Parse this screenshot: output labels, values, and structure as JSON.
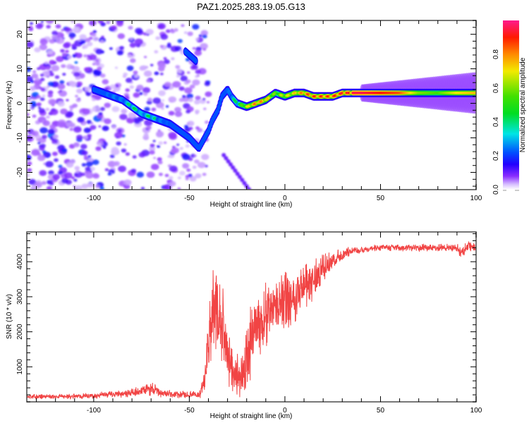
{
  "title": "PAZ1.2025.283.19.05.G13",
  "chart_data": [
    {
      "type": "heatmap",
      "name": "spectrogram",
      "title": "PAZ1.2025.283.19.05.G13",
      "xlabel": "Height of straight line (km)",
      "ylabel": "Frequency (Hz)",
      "xlim": [
        -135,
        100
      ],
      "ylim": [
        -25,
        24
      ],
      "xticks": [
        -100,
        -50,
        0,
        50,
        100
      ],
      "xtick_labels": [
        "-100",
        "-50",
        "0",
        "50",
        "100"
      ],
      "yticks": [
        -20,
        -10,
        0,
        10,
        20
      ],
      "ytick_labels": [
        "-20",
        "-10",
        "0",
        "10",
        "20"
      ],
      "colorbar": {
        "label": "Normalized spectral amplitude",
        "range": [
          0.0,
          1.0
        ],
        "ticks": [
          0.0,
          0.2,
          0.4,
          0.6,
          0.8
        ],
        "tick_labels": [
          "0.0",
          "0.2",
          "0.4",
          "0.6",
          "0.8"
        ],
        "colormap": [
          "#ffffff",
          "#e6d6ff",
          "#9a4dff",
          "#6a00ff",
          "#1a00ff",
          "#0060ff",
          "#00e5e5",
          "#00dd33",
          "#66e600",
          "#f0e800",
          "#ff9900",
          "#ff2000",
          "#ff1a8c"
        ]
      },
      "ridge_track": {
        "description": "Main tone track (frequency vs height), amplitude 0-1",
        "x": [
          -100,
          -95,
          -90,
          -85,
          -80,
          -75,
          -70,
          -65,
          -60,
          -55,
          -50,
          -45,
          -42,
          -40,
          -38,
          -35,
          -33,
          -30,
          -28,
          -25,
          -20,
          -15,
          -10,
          -5,
          0,
          5,
          10,
          15,
          20,
          25,
          30,
          40,
          50,
          60,
          70,
          80,
          90,
          100
        ],
        "freq": [
          4,
          3,
          2,
          1,
          -1,
          -3,
          -4,
          -5,
          -6,
          -8,
          -10,
          -13,
          -10,
          -8,
          -5,
          -2,
          2,
          4,
          2,
          0,
          -1,
          0,
          1,
          3,
          2,
          3,
          3,
          2,
          2,
          2,
          3,
          3,
          3,
          3,
          3,
          3,
          3,
          3
        ],
        "amp": [
          0.25,
          0.3,
          0.35,
          0.35,
          0.45,
          0.4,
          0.45,
          0.35,
          0.3,
          0.25,
          0.25,
          0.2,
          0.35,
          0.25,
          0.2,
          0.2,
          0.2,
          0.3,
          0.4,
          0.45,
          0.7,
          0.85,
          0.8,
          0.6,
          0.7,
          0.75,
          0.85,
          0.9,
          0.9,
          0.9,
          0.95,
          0.95,
          0.9,
          0.85,
          0.6,
          0.55,
          0.7,
          0.75
        ]
      },
      "secondary_track": {
        "x": [
          -52,
          -50,
          -48,
          -46
        ],
        "freq": [
          15,
          14,
          13,
          12
        ],
        "amp": [
          0.2,
          0.3,
          0.3,
          0.2
        ]
      },
      "noise_region": {
        "x_range": [
          -135,
          -40
        ],
        "level": 0.12
      }
    },
    {
      "type": "line",
      "name": "snr",
      "xlabel": "Height of straight line (km)",
      "ylabel": "SNR (10 * v/v)",
      "xlim": [
        -135,
        100
      ],
      "ylim": [
        0,
        4850
      ],
      "xticks": [
        -100,
        -50,
        0,
        50,
        100
      ],
      "xtick_labels": [
        "-100",
        "-50",
        "0",
        "50",
        "100"
      ],
      "yticks": [
        1000,
        2000,
        3000,
        4000
      ],
      "ytick_labels": [
        "1000",
        "2000",
        "3000",
        "4000"
      ],
      "color": "#f03030",
      "series": [
        {
          "name": "SNR",
          "envelope_x": [
            -135,
            -120,
            -100,
            -80,
            -75,
            -70,
            -65,
            -55,
            -45,
            -42,
            -40,
            -38,
            -36,
            -34,
            -32,
            -30,
            -28,
            -26,
            -24,
            -22,
            -20,
            -18,
            -15,
            -12,
            -10,
            -8,
            -5,
            -2,
            0,
            3,
            5,
            8,
            10,
            13,
            15,
            18,
            20,
            25,
            30,
            35,
            40,
            50,
            60,
            70,
            80,
            90,
            93,
            95,
            100
          ],
          "envelope_mean": [
            150,
            150,
            170,
            260,
            300,
            380,
            250,
            200,
            200,
            600,
            1500,
            2400,
            2800,
            2200,
            2000,
            1400,
            1000,
            800,
            800,
            700,
            1200,
            1800,
            2100,
            2300,
            2500,
            2600,
            2700,
            2800,
            2900,
            3000,
            3000,
            3200,
            3300,
            3400,
            3500,
            3700,
            3800,
            4000,
            4200,
            4300,
            4350,
            4400,
            4400,
            4400,
            4400,
            4400,
            4250,
            4450,
            4400
          ],
          "envelope_noise": [
            70,
            70,
            80,
            120,
            150,
            200,
            120,
            100,
            100,
            400,
            900,
            1400,
            1300,
            1100,
            1000,
            900,
            700,
            600,
            600,
            600,
            900,
            1000,
            900,
            900,
            900,
            900,
            800,
            800,
            800,
            800,
            800,
            700,
            700,
            600,
            600,
            500,
            400,
            250,
            150,
            120,
            100,
            100,
            100,
            100,
            100,
            100,
            200,
            200,
            100
          ]
        }
      ]
    }
  ]
}
